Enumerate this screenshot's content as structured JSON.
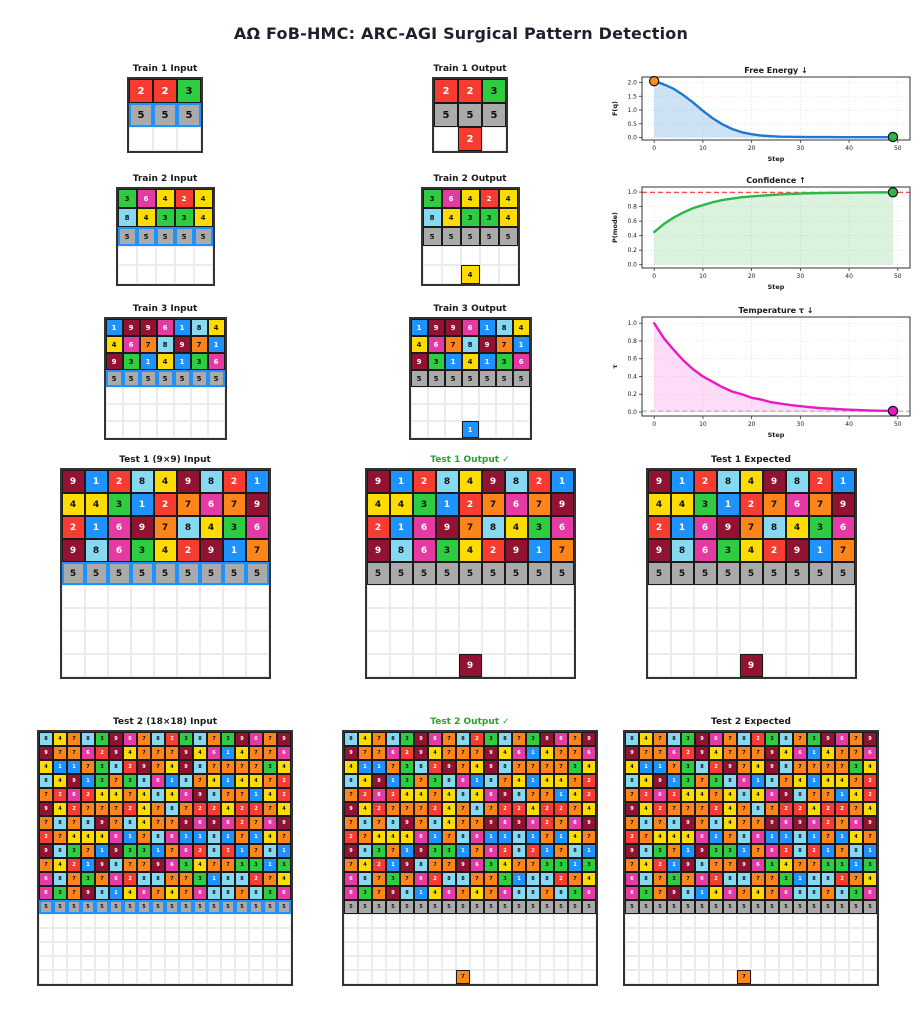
{
  "title": "AΩ FoB-HMC: ARC-AGI Surgical Pattern Detection",
  "palette": {
    "0": "#ffffff",
    "1": "#1E93FF",
    "2": "#F93C31",
    "3": "#2ECC40",
    "4": "#FFDC00",
    "5": "#AAAAAA",
    "6": "#E53AA3",
    "7": "#FF851B",
    "8": "#87D8F1",
    "9": "#921231"
  },
  "dark_text_values": [
    "3",
    "4",
    "5",
    "7",
    "8"
  ],
  "highlight_border_color": "#1E93FF",
  "check_color": "#2ca02c",
  "panels": [
    {
      "id": "train1-input",
      "title": "Train 1 Input",
      "cell": 24,
      "input": true,
      "rows": [
        "223",
        "555",
        "000"
      ]
    },
    {
      "id": "train1-output",
      "title": "Train 1 Output",
      "cell": 24,
      "rows": [
        "223",
        "555",
        "020"
      ]
    },
    {
      "id": "train2-input",
      "title": "Train 2 Input",
      "cell": 19,
      "input": true,
      "rows": [
        "36424",
        "84334",
        "55555",
        "00000",
        "00000"
      ]
    },
    {
      "id": "train2-output",
      "title": "Train 2 Output",
      "cell": 19,
      "rows": [
        "36424",
        "84334",
        "55555",
        "00000",
        "00400"
      ]
    },
    {
      "id": "train3-input",
      "title": "Train 3 Input",
      "cell": 17,
      "input": true,
      "rows": [
        "1996184",
        "4678971",
        "9314136",
        "5555555",
        "0000000",
        "0000000",
        "0000000"
      ]
    },
    {
      "id": "train3-output",
      "title": "Train 3 Output",
      "cell": 17,
      "rows": [
        "1996184",
        "4678971",
        "9314136",
        "5555555",
        "0000000",
        "0000000",
        "0001000"
      ]
    },
    {
      "id": "test1-input",
      "title": "Test 1 (9×9) Input",
      "cell": 23,
      "input": true,
      "rows": [
        "912849821",
        "443127679",
        "216978436",
        "986342917",
        "555555555",
        "000000000",
        "000000000",
        "000000000",
        "000000000"
      ]
    },
    {
      "id": "test1-output",
      "title": "Test 1 Output  ✓",
      "cell": 23,
      "green": true,
      "rows": [
        "912849821",
        "443127679",
        "216978436",
        "986342917",
        "555555555",
        "000000000",
        "000000000",
        "000000000",
        "000090000"
      ]
    },
    {
      "id": "test1-expected",
      "title": "Test 1 Expected",
      "cell": 23,
      "rows": [
        "912849821",
        "443127679",
        "216978436",
        "986342917",
        "555555555",
        "000000000",
        "000000000",
        "000000000",
        "000090000"
      ]
    },
    {
      "id": "test2-input",
      "title": "Test 2 (18×18) Input",
      "cell": 14,
      "input": true,
      "rows": [
        "847839678238739679",
        "977629477794614776",
        "411738297498777734",
        "849137386187414472",
        "726244748469877142",
        "942777247872242274",
        "787897847796962769",
        "274446178611817147",
        "983719331762821781",
        "742198779634773313",
        "687376288773188274",
        "637981467476887836",
        "555555555555555555",
        "000000000000000000",
        "000000000000000000",
        "000000000000000000",
        "000000000000000000",
        "000000000000000000"
      ]
    },
    {
      "id": "test2-output",
      "title": "Test 2 Output  ✓",
      "cell": 14,
      "green": true,
      "rows": [
        "847839678238739679",
        "977629477794614776",
        "411738297498777734",
        "849137386187414472",
        "726244748469877142",
        "942777247872242274",
        "787897847796962769",
        "274446178611817147",
        "983719331762821781",
        "742198779634773313",
        "687376288773188274",
        "637981467476887836",
        "555555555555555555",
        "000000000000000000",
        "000000000000000000",
        "000000000000000000",
        "000000000000000000",
        "000000007000000000"
      ]
    },
    {
      "id": "test2-expected",
      "title": "Test 2 Expected",
      "cell": 14,
      "rows": [
        "847839678238739679",
        "977629477794614776",
        "411738297498777734",
        "849137386187414472",
        "726244748469877142",
        "942777247872242274",
        "787897847796962769",
        "274446178611817147",
        "983719331762821781",
        "742198779634773313",
        "687376288773188274",
        "637981467476887836",
        "555555555555555555",
        "000000000000000000",
        "000000000000000000",
        "000000000000000000",
        "000000000000000000",
        "000000007000000000"
      ]
    }
  ],
  "chart_data": [
    {
      "type": "line",
      "title": "Free Energy ↓",
      "xlabel": "Step",
      "ylabel": "F(q)",
      "xlim": [
        -2.5,
        52.5
      ],
      "ylim": [
        -0.09,
        2.2
      ],
      "xticks": [
        0,
        10,
        20,
        30,
        40,
        50
      ],
      "xtick_labels": [
        "0",
        "10",
        "20",
        "30",
        "40",
        "50"
      ],
      "yticks": [
        0,
        0.5,
        1,
        1.5,
        2
      ],
      "ytick_labels": [
        "0.0",
        "0.5",
        "1.0",
        "1.5",
        "2.0"
      ],
      "line_color": "#1f77d4",
      "fill_color": "rgba(60,140,220,0.25)",
      "x": [
        0,
        2,
        4,
        6,
        8,
        10,
        12,
        14,
        16,
        18,
        20,
        22,
        24,
        26,
        28,
        30,
        32,
        34,
        36,
        38,
        40,
        42,
        44,
        46,
        48,
        49
      ],
      "y": [
        2.05,
        1.93,
        1.77,
        1.54,
        1.27,
        0.97,
        0.7,
        0.48,
        0.31,
        0.19,
        0.12,
        0.07,
        0.05,
        0.03,
        0.025,
        0.02,
        0.018,
        0.016,
        0.015,
        0.014,
        0.013,
        0.013,
        0.012,
        0.012,
        0.012,
        0.02
      ],
      "start_dot": {
        "x": 0,
        "y": 2.05,
        "color": "#ff8c1a"
      },
      "end_dot": {
        "x": 49,
        "y": 0.02,
        "color": "#2bb845"
      }
    },
    {
      "type": "line",
      "title": "Confidence ↑",
      "xlabel": "Step",
      "ylabel": "P(mode)",
      "xlim": [
        -2.5,
        52.5
      ],
      "ylim": [
        -0.045,
        1.07
      ],
      "xticks": [
        0,
        10,
        20,
        30,
        40,
        50
      ],
      "xtick_labels": [
        "0",
        "10",
        "20",
        "30",
        "40",
        "50"
      ],
      "yticks": [
        0,
        0.2,
        0.4,
        0.6,
        0.8,
        1
      ],
      "ytick_labels": [
        "0.0",
        "0.2",
        "0.4",
        "0.6",
        "0.8",
        "1.0"
      ],
      "line_color": "#2bb845",
      "fill_color": "rgba(70,190,90,0.20)",
      "hline": {
        "y": 0.995,
        "color": "#f05050"
      },
      "x": [
        0,
        2,
        4,
        6,
        8,
        10,
        12,
        14,
        16,
        18,
        20,
        22,
        24,
        26,
        28,
        30,
        32,
        34,
        36,
        38,
        40,
        42,
        44,
        46,
        48,
        49
      ],
      "y": [
        0.45,
        0.56,
        0.65,
        0.72,
        0.78,
        0.82,
        0.86,
        0.89,
        0.91,
        0.93,
        0.94,
        0.95,
        0.96,
        0.97,
        0.975,
        0.98,
        0.984,
        0.987,
        0.989,
        0.991,
        0.992,
        0.994,
        0.995,
        0.996,
        0.996,
        0.997
      ],
      "end_dot": {
        "x": 49,
        "y": 0.997,
        "color": "#2bb845"
      }
    },
    {
      "type": "line",
      "title": "Temperature τ ↓",
      "xlabel": "Step",
      "ylabel": "τ",
      "xlim": [
        -2.5,
        52.5
      ],
      "ylim": [
        -0.045,
        1.07
      ],
      "xticks": [
        0,
        10,
        20,
        30,
        40,
        50
      ],
      "xtick_labels": [
        "0",
        "10",
        "20",
        "30",
        "40",
        "50"
      ],
      "yticks": [
        0,
        0.2,
        0.4,
        0.6,
        0.8,
        1
      ],
      "ytick_labels": [
        "0.0",
        "0.2",
        "0.4",
        "0.6",
        "0.8",
        "1.0"
      ],
      "line_color": "#ee18c2",
      "fill_color": "rgba(240,80,210,0.20)",
      "hline": {
        "y": 0.01,
        "color": "#b5b5b5"
      },
      "x": [
        0,
        2,
        4,
        6,
        8,
        10,
        12,
        14,
        16,
        18,
        20,
        22,
        24,
        26,
        28,
        30,
        32,
        34,
        36,
        38,
        40,
        42,
        44,
        46,
        48,
        49
      ],
      "y": [
        1.0,
        0.83,
        0.7,
        0.58,
        0.48,
        0.4,
        0.34,
        0.28,
        0.23,
        0.2,
        0.16,
        0.14,
        0.11,
        0.094,
        0.078,
        0.065,
        0.054,
        0.045,
        0.038,
        0.032,
        0.026,
        0.022,
        0.018,
        0.015,
        0.013,
        0.012
      ],
      "end_dot": {
        "x": 49,
        "y": 0.012,
        "color": "#ee18c2"
      }
    }
  ]
}
